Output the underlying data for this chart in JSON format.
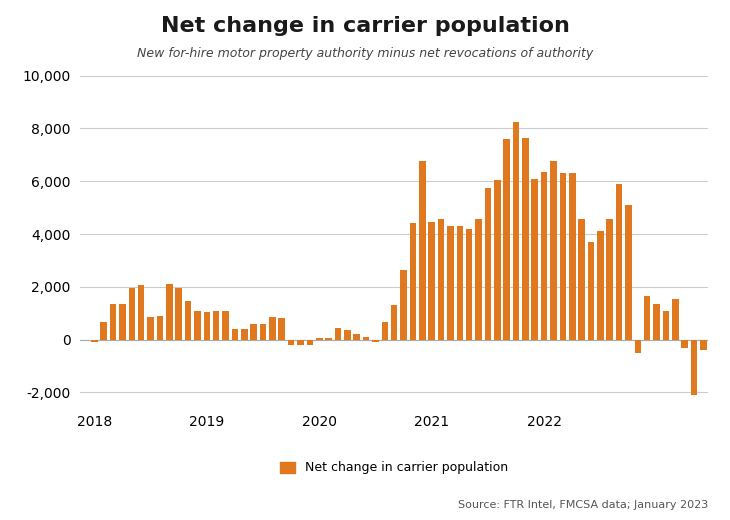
{
  "title": "Net change in carrier population",
  "subtitle": "New for-hire motor property authority minus net revocations of authority",
  "source": "Source: FTR Intel, FMCSA data; January 2023",
  "legend_label": "Net change in carrier population",
  "bar_color": "#E07820",
  "background_color": "#ffffff",
  "ylim": [
    -2500,
    10500
  ],
  "yticks": [
    -2000,
    0,
    2000,
    4000,
    6000,
    8000,
    10000
  ],
  "grid_color": "#cccccc",
  "values": [
    -100,
    650,
    1350,
    1350,
    1950,
    2050,
    850,
    900,
    2100,
    1950,
    1450,
    1100,
    1050,
    1100,
    1100,
    400,
    400,
    600,
    600,
    850,
    800,
    -200,
    -200,
    -200,
    50,
    50,
    450,
    350,
    200,
    100,
    -100,
    650,
    1300,
    2650,
    4400,
    6750,
    4450,
    4550,
    4300,
    4300,
    4200,
    4550,
    5750,
    6050,
    7600,
    8250,
    7650,
    6100,
    6350,
    6750,
    6300,
    6300,
    4550,
    3700,
    4100,
    4550,
    5900,
    5100,
    -500,
    1650,
    1350,
    1100,
    1550,
    -300,
    -2100,
    -400
  ],
  "start_year": 2018,
  "start_month": 1,
  "year_labels": [
    2018,
    2019,
    2020,
    2021,
    2022
  ],
  "title_fontsize": 16,
  "subtitle_fontsize": 9,
  "tick_fontsize": 10,
  "legend_fontsize": 9,
  "source_fontsize": 8
}
